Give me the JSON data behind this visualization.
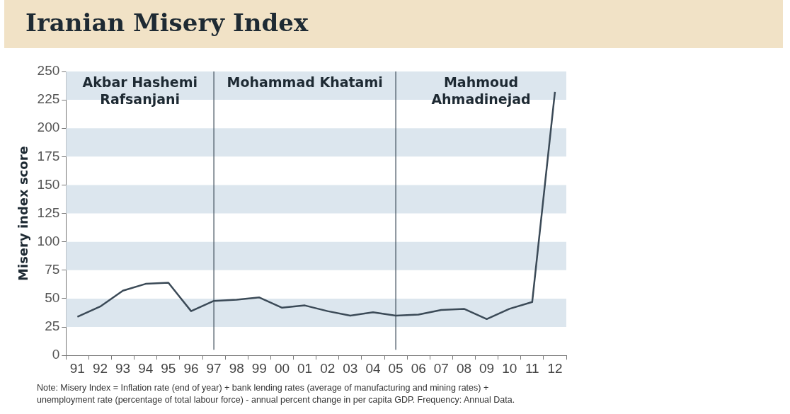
{
  "chart_data": {
    "type": "line",
    "title": "Iranian Misery Index",
    "ylabel": "Misery index score",
    "categories": [
      "91",
      "92",
      "93",
      "94",
      "95",
      "96",
      "97",
      "98",
      "99",
      "00",
      "01",
      "02",
      "03",
      "04",
      "05",
      "06",
      "07",
      "08",
      "09",
      "10",
      "11",
      "12"
    ],
    "series": [
      {
        "color": "#3b4a57",
        "values": [
          34,
          43,
          57,
          63,
          64,
          39,
          48,
          49,
          51,
          42,
          44,
          39,
          35,
          38,
          35,
          36,
          40,
          41,
          32,
          41,
          47,
          232
        ]
      }
    ],
    "ylim": [
      0,
      250
    ],
    "yticks": [
      0,
      25,
      50,
      75,
      100,
      125,
      150,
      175,
      200,
      225,
      250
    ],
    "bands": [
      {
        "axis": "y",
        "from": 25,
        "to": 50,
        "color": "#dce6ee"
      },
      {
        "axis": "y",
        "from": 75,
        "to": 100,
        "color": "#dce6ee"
      },
      {
        "axis": "y",
        "from": 125,
        "to": 150,
        "color": "#dce6ee"
      },
      {
        "axis": "y",
        "from": 175,
        "to": 200,
        "color": "#dce6ee"
      },
      {
        "axis": "y",
        "from": 225,
        "to": 250,
        "color": "#dce6ee"
      }
    ],
    "ref_lines": [
      {
        "axis": "x",
        "value": "97",
        "label": "Mohammad Khatami",
        "color": "#3b4a57"
      },
      {
        "axis": "x",
        "value": "05",
        "label": "Mahmoud\nAhmadinejad",
        "color": "#3b4a57"
      }
    ],
    "annotations": [
      "Akbar Hashemi\nRafsanjani",
      "Note: Misery Index = Inflation rate (end of year) + bank lending rates (average of manufacturing and mining rates) +\nunemployment rate (percentage of total labour force) - annual percent change in per capita GDP. Frequency: Annual Data."
    ],
    "marker": "none",
    "legend": false
  }
}
